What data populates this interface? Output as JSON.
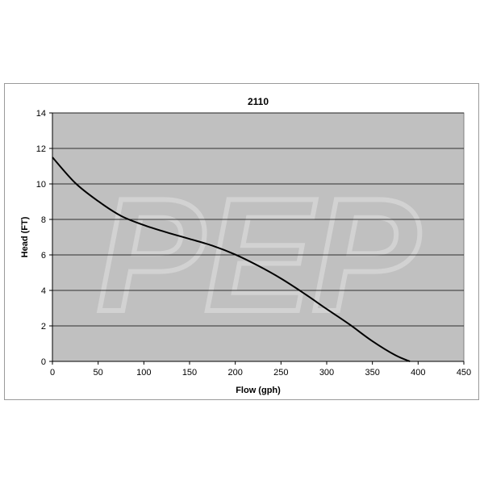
{
  "chart_data": {
    "type": "line",
    "title": "2110",
    "xlabel": "Flow (gph)",
    "ylabel": "Head (FT)",
    "xlim": [
      0,
      450
    ],
    "ylim": [
      0,
      14
    ],
    "xticks": [
      0,
      50,
      100,
      150,
      200,
      250,
      300,
      350,
      400,
      450
    ],
    "yticks": [
      0,
      2,
      4,
      6,
      8,
      10,
      12,
      14
    ],
    "grid": "horizontal",
    "legend": "none",
    "plot_background": "#c0c0c0",
    "line_color": "#000000",
    "watermark": "PEP",
    "series": [
      {
        "x": [
          0,
          25,
          50,
          75,
          100,
          125,
          150,
          175,
          200,
          225,
          250,
          275,
          300,
          325,
          350,
          375,
          391
        ],
        "y": [
          11.5,
          10.05,
          9.03,
          8.2,
          7.68,
          7.27,
          6.9,
          6.52,
          6.02,
          5.39,
          4.67,
          3.84,
          2.95,
          2.08,
          1.14,
          0.35,
          0
        ]
      }
    ]
  }
}
